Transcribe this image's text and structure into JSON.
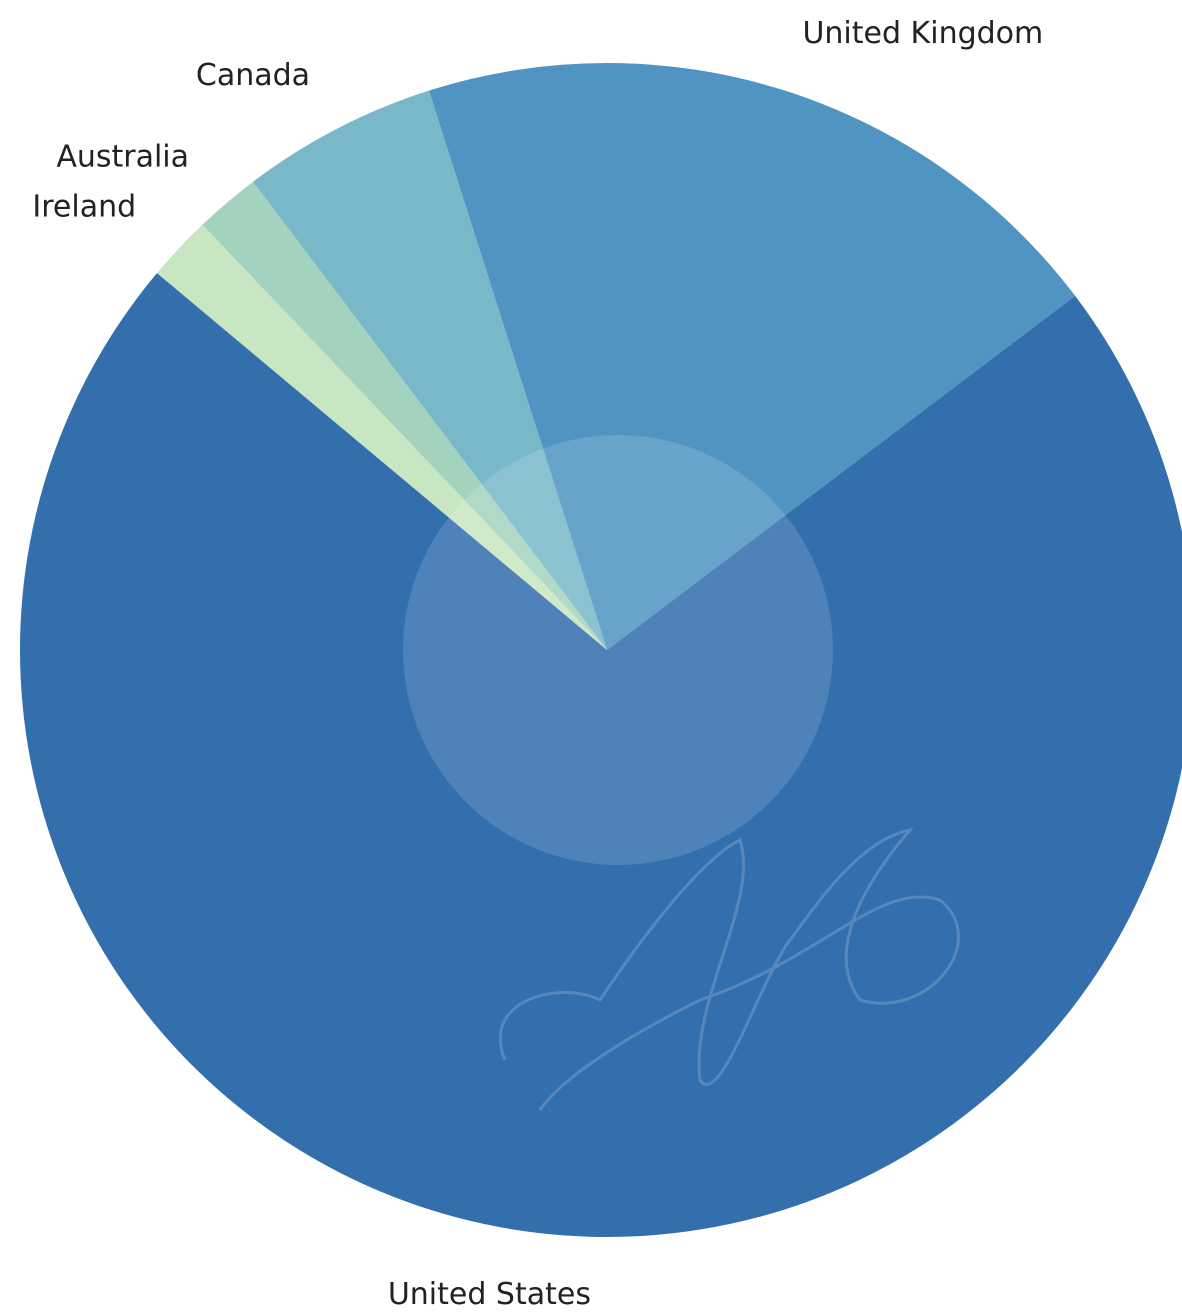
{
  "chart_data": {
    "type": "pie",
    "categories": [
      "United Kingdom",
      "Canada",
      "Australia",
      "Ireland",
      "United States"
    ],
    "values": [
      19.6,
      5.4,
      1.8,
      1.8,
      71.4
    ],
    "colors": [
      "#5095c2",
      "#78b8c9",
      "#a3d3bf",
      "#c8e6c1",
      "#336ead"
    ]
  }
}
